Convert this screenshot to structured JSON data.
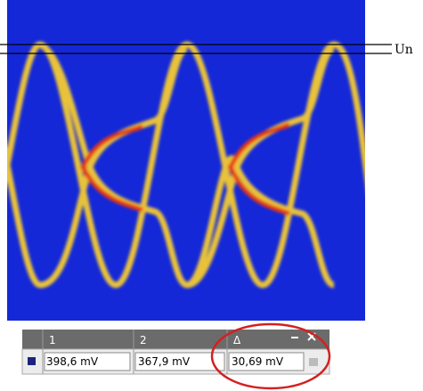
{
  "scope": {
    "level_label": "Un"
  },
  "table": {
    "headers": [
      "1",
      "2",
      "Δ"
    ],
    "values": [
      "398,6 mV",
      "367,9 mV",
      "30,69 mV"
    ]
  }
}
